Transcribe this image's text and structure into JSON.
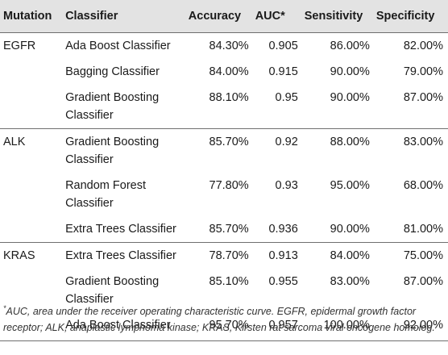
{
  "table": {
    "headers": {
      "mutation": "Mutation",
      "classifier": "Classifier",
      "accuracy": "Accuracy",
      "auc": "AUC*",
      "sensitivity": "Sensitivity",
      "specificity": "Specificity"
    },
    "rows": [
      {
        "mutation": "EGFR",
        "classifier": "Ada Boost Classifier",
        "accuracy": "84.30%",
        "auc": "0.905",
        "sensitivity": "86.00%",
        "specificity": "82.00%"
      },
      {
        "mutation": "",
        "classifier": "Bagging Classifier",
        "accuracy": "84.00%",
        "auc": "0.915",
        "sensitivity": "90.00%",
        "specificity": "79.00%"
      },
      {
        "mutation": "",
        "classifier": "Gradient Boosting Classifier",
        "accuracy": "88.10%",
        "auc": "0.95",
        "sensitivity": "90.00%",
        "specificity": "87.00%"
      },
      {
        "mutation": "ALK",
        "classifier": "Gradient Boosting Classifier",
        "accuracy": "85.70%",
        "auc": "0.92",
        "sensitivity": "88.00%",
        "specificity": "83.00%"
      },
      {
        "mutation": "",
        "classifier": "Random Forest Classifier",
        "accuracy": "77.80%",
        "auc": "0.93",
        "sensitivity": "95.00%",
        "specificity": "68.00%"
      },
      {
        "mutation": "",
        "classifier": "Extra Trees Classifier",
        "accuracy": "85.70%",
        "auc": "0.936",
        "sensitivity": "90.00%",
        "specificity": "81.00%"
      },
      {
        "mutation": "KRAS",
        "classifier": "Extra Trees Classifier",
        "accuracy": "78.70%",
        "auc": "0.913",
        "sensitivity": "84.00%",
        "specificity": "75.00%"
      },
      {
        "mutation": "",
        "classifier": "Gradient Boosting Classifier",
        "accuracy": "85.10%",
        "auc": "0.955",
        "sensitivity": "83.00%",
        "specificity": "87.00%"
      },
      {
        "mutation": "",
        "classifier": "Ada Boost Classifier",
        "accuracy": "95.70%",
        "auc": "0.957",
        "sensitivity": "100.00%",
        "specificity": "92.00%"
      }
    ]
  },
  "footnote": {
    "marker": "*",
    "text": "AUC, area under the receiver operating characteristic curve. EGFR, epidermal growth factor receptor; ALK, anaplastic lymphoma kinase; KRAS, Kirsten rat sarcoma viral oncogene homolog."
  },
  "colors": {
    "header_background": "#e3e3e3",
    "rule": "#6f6f6f",
    "text": "#1a1a1a"
  }
}
